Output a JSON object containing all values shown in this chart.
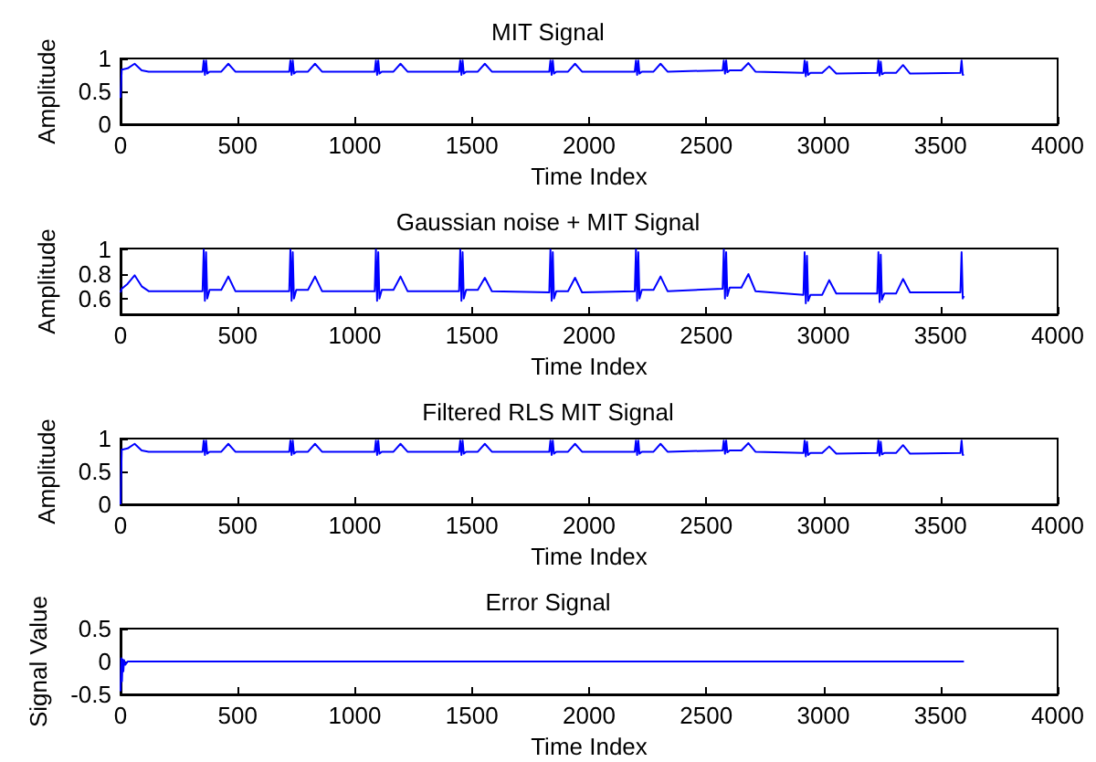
{
  "chart_data": [
    {
      "type": "line",
      "title": "MIT Signal",
      "xlabel": "Time Index",
      "ylabel": "Amplitude",
      "xlim": [
        0,
        4000
      ],
      "xticks": [
        0,
        500,
        1000,
        1500,
        2000,
        2500,
        3000,
        3500,
        4000
      ],
      "ylim": [
        0,
        1
      ],
      "yticks": [
        0,
        0.5,
        1
      ],
      "grid": false,
      "series": [
        {
          "color": "#0000ff",
          "x": [
            0,
            5,
            30,
            60,
            90,
            120,
            350,
            355,
            360,
            365,
            370,
            380,
            430,
            460,
            490,
            720,
            725,
            730,
            735,
            740,
            750,
            800,
            830,
            860,
            1085,
            1090,
            1095,
            1100,
            1105,
            1115,
            1165,
            1195,
            1225,
            1445,
            1450,
            1455,
            1460,
            1465,
            1475,
            1525,
            1555,
            1585,
            1830,
            1835,
            1840,
            1845,
            1850,
            1860,
            1910,
            1940,
            1970,
            2195,
            2200,
            2205,
            2210,
            2215,
            2225,
            2275,
            2305,
            2335,
            2570,
            2575,
            2580,
            2585,
            2590,
            2600,
            2650,
            2680,
            2710,
            2915,
            2920,
            2925,
            2930,
            2935,
            2945,
            2995,
            3025,
            3055,
            3230,
            3235,
            3240,
            3245,
            3250,
            3260,
            3310,
            3340,
            3370,
            3585,
            3590,
            3595,
            3600
          ],
          "values": [
            0.4,
            0.83,
            0.85,
            0.92,
            0.82,
            0.8,
            0.8,
            0.97,
            0.75,
            0.97,
            0.77,
            0.8,
            0.8,
            0.92,
            0.8,
            0.8,
            0.97,
            0.75,
            0.97,
            0.77,
            0.8,
            0.8,
            0.92,
            0.8,
            0.8,
            0.97,
            0.75,
            0.97,
            0.77,
            0.8,
            0.8,
            0.92,
            0.8,
            0.8,
            0.97,
            0.75,
            0.97,
            0.77,
            0.8,
            0.8,
            0.92,
            0.8,
            0.8,
            0.97,
            0.75,
            0.97,
            0.77,
            0.8,
            0.8,
            0.92,
            0.8,
            0.8,
            0.97,
            0.75,
            0.97,
            0.77,
            0.8,
            0.8,
            0.92,
            0.8,
            0.82,
            0.97,
            0.77,
            0.97,
            0.79,
            0.82,
            0.82,
            0.93,
            0.8,
            0.78,
            0.97,
            0.73,
            0.95,
            0.75,
            0.78,
            0.78,
            0.88,
            0.77,
            0.78,
            0.97,
            0.74,
            0.95,
            0.76,
            0.78,
            0.78,
            0.9,
            0.77,
            0.78,
            0.97,
            0.75,
            0.76
          ]
        }
      ]
    },
    {
      "type": "line",
      "title": "Gaussian noise + MIT Signal",
      "xlabel": "Time Index",
      "ylabel": "Amplitude",
      "xlim": [
        0,
        4000
      ],
      "xticks": [
        0,
        500,
        1000,
        1500,
        2000,
        2500,
        3000,
        3500,
        4000
      ],
      "ylim": [
        0.47,
        1.01
      ],
      "yticks": [
        0.6,
        0.8,
        1
      ],
      "grid": false,
      "series": [
        {
          "color": "#0000ff",
          "x": [
            0,
            5,
            30,
            60,
            90,
            120,
            350,
            355,
            360,
            365,
            370,
            380,
            430,
            460,
            490,
            720,
            725,
            730,
            735,
            740,
            750,
            800,
            830,
            860,
            1085,
            1090,
            1095,
            1100,
            1105,
            1115,
            1165,
            1195,
            1225,
            1445,
            1450,
            1455,
            1460,
            1465,
            1475,
            1525,
            1555,
            1585,
            1830,
            1835,
            1840,
            1845,
            1850,
            1860,
            1910,
            1940,
            1970,
            2195,
            2200,
            2205,
            2210,
            2215,
            2225,
            2275,
            2305,
            2335,
            2570,
            2575,
            2580,
            2585,
            2590,
            2600,
            2650,
            2680,
            2710,
            2915,
            2920,
            2925,
            2930,
            2935,
            2945,
            2995,
            3025,
            3055,
            3230,
            3235,
            3240,
            3245,
            3250,
            3260,
            3310,
            3340,
            3370,
            3585,
            3590,
            3595,
            3600
          ],
          "values": [
            0.65,
            0.68,
            0.72,
            0.79,
            0.7,
            0.66,
            0.66,
            1,
            0.58,
            0.98,
            0.6,
            0.67,
            0.67,
            0.78,
            0.66,
            0.66,
            1,
            0.58,
            0.98,
            0.6,
            0.67,
            0.67,
            0.78,
            0.66,
            0.66,
            1,
            0.58,
            0.98,
            0.6,
            0.67,
            0.67,
            0.78,
            0.66,
            0.66,
            1,
            0.58,
            0.98,
            0.6,
            0.67,
            0.67,
            0.77,
            0.66,
            0.65,
            1,
            0.58,
            0.98,
            0.6,
            0.66,
            0.66,
            0.77,
            0.65,
            0.66,
            1,
            0.58,
            0.98,
            0.6,
            0.67,
            0.67,
            0.78,
            0.66,
            0.68,
            1,
            0.6,
            0.98,
            0.62,
            0.69,
            0.69,
            0.8,
            0.66,
            0.63,
            0.98,
            0.56,
            0.95,
            0.58,
            0.63,
            0.63,
            0.75,
            0.64,
            0.64,
            0.98,
            0.57,
            0.96,
            0.59,
            0.64,
            0.64,
            0.76,
            0.65,
            0.65,
            0.98,
            0.6,
            0.62
          ]
        }
      ]
    },
    {
      "type": "line",
      "title": "Filtered RLS MIT Signal",
      "xlabel": "Time Index",
      "ylabel": "Amplitude",
      "xlim": [
        0,
        4000
      ],
      "xticks": [
        0,
        500,
        1000,
        1500,
        2000,
        2500,
        3000,
        3500,
        4000
      ],
      "ylim": [
        0,
        1
      ],
      "yticks": [
        0,
        0.5,
        1
      ],
      "grid": false,
      "series": [
        {
          "color": "#0000ff",
          "x": [
            0,
            5,
            30,
            60,
            90,
            120,
            350,
            355,
            360,
            365,
            370,
            380,
            430,
            460,
            490,
            720,
            725,
            730,
            735,
            740,
            750,
            800,
            830,
            860,
            1085,
            1090,
            1095,
            1100,
            1105,
            1115,
            1165,
            1195,
            1225,
            1445,
            1450,
            1455,
            1460,
            1465,
            1475,
            1525,
            1555,
            1585,
            1830,
            1835,
            1840,
            1845,
            1850,
            1860,
            1910,
            1940,
            1970,
            2195,
            2200,
            2205,
            2210,
            2215,
            2225,
            2275,
            2305,
            2335,
            2570,
            2575,
            2580,
            2585,
            2590,
            2600,
            2650,
            2680,
            2710,
            2915,
            2920,
            2925,
            2930,
            2935,
            2945,
            2995,
            3025,
            3055,
            3230,
            3235,
            3240,
            3245,
            3250,
            3260,
            3310,
            3340,
            3370,
            3585,
            3590,
            3595,
            3600
          ],
          "values": [
            0.0,
            0.83,
            0.85,
            0.92,
            0.82,
            0.8,
            0.8,
            0.97,
            0.75,
            0.97,
            0.77,
            0.8,
            0.8,
            0.92,
            0.8,
            0.8,
            0.97,
            0.75,
            0.97,
            0.77,
            0.8,
            0.8,
            0.92,
            0.8,
            0.8,
            0.97,
            0.75,
            0.97,
            0.77,
            0.8,
            0.8,
            0.92,
            0.8,
            0.8,
            0.97,
            0.75,
            0.97,
            0.77,
            0.8,
            0.8,
            0.92,
            0.8,
            0.8,
            0.97,
            0.75,
            0.97,
            0.77,
            0.8,
            0.8,
            0.92,
            0.8,
            0.8,
            0.97,
            0.75,
            0.97,
            0.77,
            0.8,
            0.8,
            0.92,
            0.8,
            0.82,
            0.97,
            0.77,
            0.97,
            0.79,
            0.82,
            0.82,
            0.93,
            0.8,
            0.78,
            0.97,
            0.73,
            0.95,
            0.75,
            0.78,
            0.78,
            0.88,
            0.77,
            0.78,
            0.97,
            0.74,
            0.95,
            0.76,
            0.78,
            0.78,
            0.9,
            0.77,
            0.78,
            0.97,
            0.75,
            0.76
          ]
        }
      ]
    },
    {
      "type": "line",
      "title": "Error Signal",
      "xlabel": "Time Index",
      "ylabel": "Signal Value",
      "xlim": [
        0,
        4000
      ],
      "xticks": [
        0,
        500,
        1000,
        1500,
        2000,
        2500,
        3000,
        3500,
        4000
      ],
      "ylim": [
        -0.5,
        0.5
      ],
      "yticks": [
        -0.5,
        0,
        0.5
      ],
      "grid": false,
      "series": [
        {
          "color": "#0000ff",
          "x": [
            0,
            3,
            6,
            9,
            12,
            15,
            20,
            30,
            3600
          ],
          "values": [
            -0.45,
            0.05,
            -0.3,
            0.03,
            -0.15,
            0.02,
            -0.05,
            0,
            0
          ]
        }
      ]
    }
  ]
}
